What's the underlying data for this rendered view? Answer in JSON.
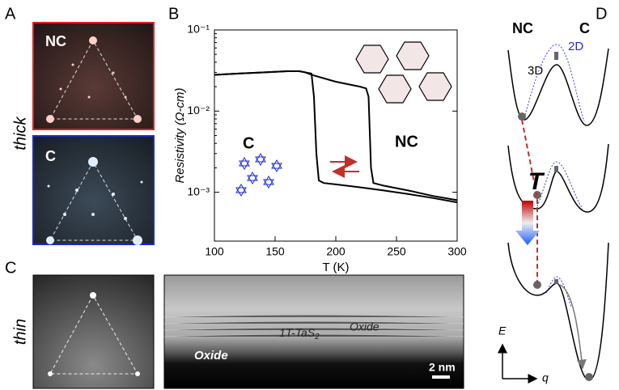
{
  "panels": {
    "a": {
      "label": "A",
      "side_label": "thick",
      "images": [
        {
          "label": "NC"
        },
        {
          "label": "C"
        }
      ]
    },
    "b": {
      "label": "B"
    },
    "c": {
      "label": "C",
      "side_label": "thin",
      "annotations": {
        "oxide_top": "Oxide",
        "layer": "1T-TaS",
        "layer_sub": "2",
        "oxide_bottom": "Oxide"
      },
      "scale_bar": "2 nm"
    },
    "d": {
      "label": "D",
      "left_state": "NC",
      "right_state": "C",
      "mode_2d": "2D",
      "mode_3d": "3D",
      "temperature": "T",
      "energy_axis": "E",
      "q_axis": "q"
    }
  },
  "chart_data": {
    "type": "line",
    "y_label": "Resistivity (Ω-cm)",
    "x_label": "T (K)",
    "annotations": [
      "C",
      "NC"
    ],
    "xlim": [
      100,
      300
    ],
    "xticks": [
      100,
      150,
      200,
      250,
      300
    ],
    "ylim": [
      0.00025,
      0.1
    ],
    "log_y": true,
    "yticks": [
      {
        "value": 0.001,
        "label": "10⁻³"
      },
      {
        "value": 0.01,
        "label": "10⁻²"
      },
      {
        "value": 0.1,
        "label": "10⁻¹"
      }
    ],
    "series": [
      {
        "color": "#000000",
        "x": [
          300,
          280,
          260,
          240,
          220,
          200,
          190,
          186,
          184,
          182,
          180,
          170,
          160,
          140,
          120,
          100
        ],
        "values": [
          0.00075,
          0.00085,
          0.00095,
          0.00105,
          0.00115,
          0.00125,
          0.0013,
          0.0014,
          0.003,
          0.015,
          0.029,
          0.031,
          0.031,
          0.03,
          0.029,
          0.028
        ]
      },
      {
        "color": "#000000",
        "x": [
          100,
          120,
          140,
          160,
          170,
          175,
          180,
          200,
          220,
          225,
          227,
          229,
          231,
          240,
          260,
          280,
          300
        ],
        "values": [
          0.028,
          0.029,
          0.03,
          0.031,
          0.031,
          0.03,
          0.028,
          0.023,
          0.02,
          0.019,
          0.015,
          0.002,
          0.0013,
          0.0012,
          0.00105,
          0.0009,
          0.0008
        ]
      }
    ]
  }
}
